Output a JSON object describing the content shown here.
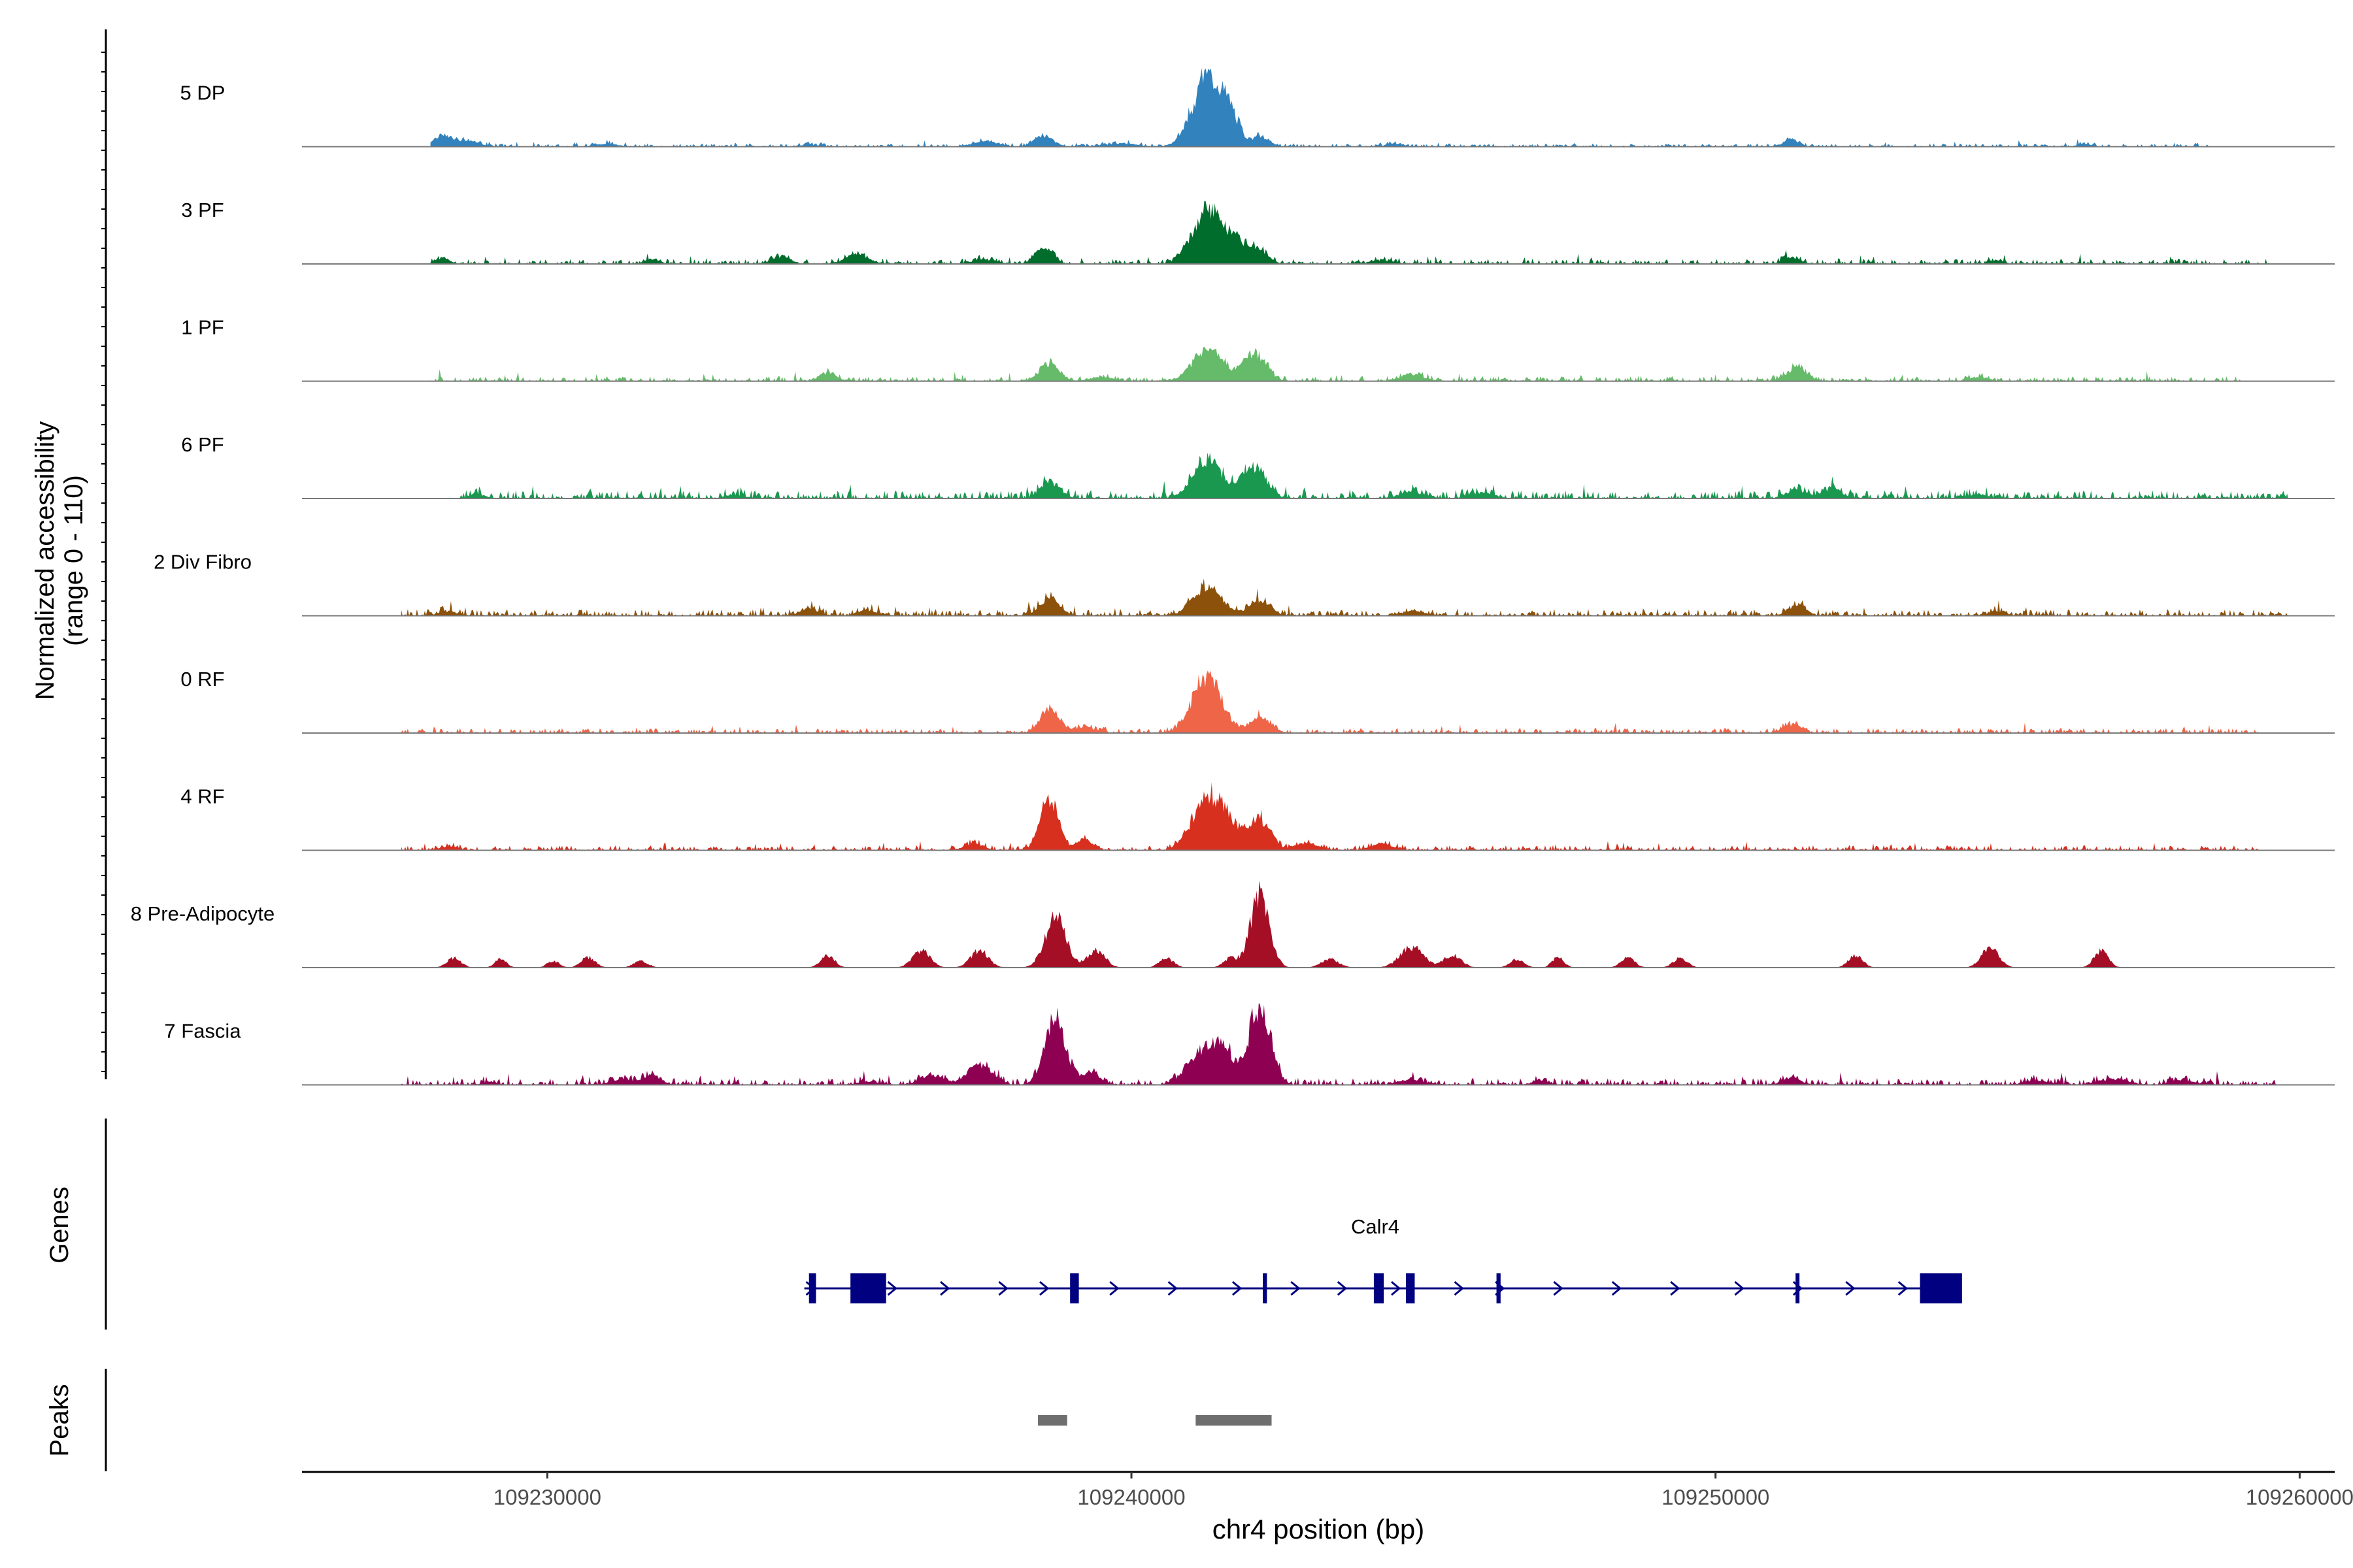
{
  "chart_data": {
    "type": "area",
    "title": "",
    "ylabel": "Normalized accessibility",
    "ylabel_sub": "(range 0 - 110)",
    "ylim": [
      0,
      110
    ],
    "xlabel": "chr4 position (bp)",
    "xlim": [
      109225800,
      109260600
    ],
    "xticks": [
      109230000,
      109240000,
      109250000,
      109260000
    ],
    "xtick_labels": [
      "109230000",
      "109240000",
      "109250000",
      "109260000"
    ],
    "genes_label": "Genes",
    "peaks_label": "Peaks",
    "tracks": [
      {
        "name": "5 DP",
        "color": "#3182BD",
        "peaks": [
          [
            109228200,
            15,
            150
          ],
          [
            109228600,
            8,
            220
          ],
          [
            109231000,
            4,
            200
          ],
          [
            109234500,
            3,
            150
          ],
          [
            109237500,
            8,
            200
          ],
          [
            109238500,
            16,
            150
          ],
          [
            109239800,
            4,
            300
          ],
          [
            109241300,
            100,
            250
          ],
          [
            109241700,
            35,
            150
          ],
          [
            109242200,
            13,
            150
          ],
          [
            109244500,
            4,
            150
          ],
          [
            109251300,
            11,
            120
          ],
          [
            109256300,
            4,
            100
          ]
        ],
        "noise": 2,
        "span": [
          109228000,
          109258500
        ]
      },
      {
        "name": "3 PF",
        "color": "#006D2C",
        "peaks": [
          [
            109228200,
            8,
            120
          ],
          [
            109231800,
            7,
            120
          ],
          [
            109234000,
            10,
            150
          ],
          [
            109235300,
            15,
            180
          ],
          [
            109237500,
            6,
            200
          ],
          [
            109238500,
            22,
            150
          ],
          [
            109241300,
            78,
            250
          ],
          [
            109241800,
            30,
            200
          ],
          [
            109242200,
            18,
            150
          ],
          [
            109244300,
            5,
            200
          ],
          [
            109251300,
            9,
            150
          ],
          [
            109254800,
            5,
            120
          ]
        ],
        "noise": 3,
        "span": [
          109228000,
          109259500
        ]
      },
      {
        "name": "1 PF",
        "color": "#66BB6A",
        "peaks": [
          [
            109234800,
            12,
            150
          ],
          [
            109238600,
            25,
            160
          ],
          [
            109239500,
            6,
            200
          ],
          [
            109241300,
            45,
            250
          ],
          [
            109242100,
            40,
            200
          ],
          [
            109244800,
            10,
            200
          ],
          [
            109251400,
            20,
            160
          ],
          [
            109254500,
            6,
            150
          ]
        ],
        "noise": 3,
        "span": [
          109228000,
          109259000
        ]
      },
      {
        "name": "6 PF",
        "color": "#1A9850",
        "peaks": [
          [
            109228800,
            6,
            120
          ],
          [
            109233200,
            5,
            150
          ],
          [
            109238600,
            25,
            160
          ],
          [
            109241300,
            55,
            250
          ],
          [
            109242100,
            45,
            200
          ],
          [
            109244800,
            10,
            200
          ],
          [
            109246000,
            8,
            200
          ],
          [
            109251400,
            12,
            160
          ],
          [
            109252000,
            15,
            150
          ],
          [
            109254500,
            6,
            150
          ]
        ],
        "noise": 5,
        "span": [
          109228500,
          109259800
        ]
      },
      {
        "name": "2 Div Fibro",
        "color": "#8C510A",
        "peaks": [
          [
            109228300,
            6,
            150
          ],
          [
            109234500,
            10,
            150
          ],
          [
            109235500,
            8,
            150
          ],
          [
            109238600,
            24,
            160
          ],
          [
            109241300,
            40,
            250
          ],
          [
            109242200,
            22,
            180
          ],
          [
            109244800,
            6,
            200
          ],
          [
            109251400,
            15,
            150
          ],
          [
            109254800,
            5,
            150
          ]
        ],
        "noise": 4,
        "span": [
          109227500,
          109259800
        ]
      },
      {
        "name": "0 RF",
        "color": "#EF6548",
        "peaks": [
          [
            109238600,
            35,
            160
          ],
          [
            109239200,
            8,
            200
          ],
          [
            109241300,
            80,
            250
          ],
          [
            109242200,
            22,
            180
          ],
          [
            109251300,
            12,
            150
          ]
        ],
        "noise": 3,
        "span": [
          109227500,
          109259300
        ]
      },
      {
        "name": "4 RF",
        "color": "#D7301F",
        "peaks": [
          [
            109228300,
            5,
            150
          ],
          [
            109237300,
            10,
            150
          ],
          [
            109238600,
            75,
            150
          ],
          [
            109239200,
            15,
            150
          ],
          [
            109241300,
            72,
            250
          ],
          [
            109241700,
            30,
            200
          ],
          [
            109242200,
            45,
            180
          ],
          [
            109243000,
            10,
            200
          ],
          [
            109244300,
            8,
            200
          ]
        ],
        "noise": 3,
        "span": [
          109227500,
          109259300
        ]
      },
      {
        "name": "8 Pre-Adipocyte",
        "color": "#A50F26",
        "peaks": [
          [
            109228400,
            14,
            120
          ],
          [
            109229200,
            12,
            100
          ],
          [
            109230100,
            10,
            100
          ],
          [
            109230700,
            15,
            120
          ],
          [
            109231600,
            10,
            120
          ],
          [
            109234800,
            18,
            120
          ],
          [
            109236400,
            25,
            150
          ],
          [
            109237400,
            25,
            150
          ],
          [
            109238700,
            72,
            180
          ],
          [
            109239400,
            25,
            150
          ],
          [
            109240600,
            14,
            120
          ],
          [
            109241700,
            14,
            120
          ],
          [
            109242200,
            110,
            160
          ],
          [
            109243400,
            12,
            150
          ],
          [
            109244800,
            30,
            200
          ],
          [
            109245500,
            18,
            150
          ],
          [
            109246600,
            12,
            120
          ],
          [
            109247300,
            15,
            100
          ],
          [
            109248500,
            14,
            120
          ],
          [
            109249400,
            14,
            120
          ],
          [
            109252400,
            18,
            120
          ],
          [
            109254700,
            28,
            150
          ],
          [
            109256600,
            25,
            120
          ]
        ],
        "noise": 0,
        "span": [
          109228000,
          109257000
        ]
      },
      {
        "name": "7 Fascia",
        "color": "#8E0152",
        "peaks": [
          [
            109229000,
            4,
            120
          ],
          [
            109231300,
            8,
            200
          ],
          [
            109231800,
            12,
            150
          ],
          [
            109235500,
            4,
            200
          ],
          [
            109236600,
            15,
            180
          ],
          [
            109237400,
            30,
            200
          ],
          [
            109238700,
            95,
            180
          ],
          [
            109239300,
            18,
            150
          ],
          [
            109241200,
            45,
            250
          ],
          [
            109241600,
            40,
            200
          ],
          [
            109242200,
            115,
            180
          ],
          [
            109244800,
            8,
            200
          ],
          [
            109247000,
            5,
            150
          ],
          [
            109251300,
            10,
            150
          ],
          [
            109255500,
            6,
            200
          ],
          [
            109256800,
            8,
            250
          ],
          [
            109258000,
            6,
            200
          ]
        ],
        "noise": 4,
        "span": [
          109227500,
          109259600
        ]
      }
    ],
    "gene": {
      "name": "Calr4",
      "color": "#000080",
      "start": 109234400,
      "end": 109254200,
      "exons": [
        [
          109234480,
          109234600
        ],
        [
          109235190,
          109235800
        ],
        [
          109238950,
          109239100
        ],
        [
          109242250,
          109242320
        ],
        [
          109244150,
          109244320
        ],
        [
          109244700,
          109244850
        ],
        [
          109246250,
          109246320
        ],
        [
          109251370,
          109251430
        ],
        [
          109253500,
          109254220
        ]
      ],
      "arrows": [
        109234500,
        109235900,
        109236800,
        109237800,
        109238500,
        109239700,
        109240700,
        109241800,
        109242800,
        109243600,
        109244520,
        109245600,
        109246300,
        109247300,
        109248300,
        109249300,
        109250400,
        109251400,
        109252300,
        109253200
      ]
    },
    "peaks": [
      [
        109238400,
        109238900
      ],
      [
        109241100,
        109242400
      ]
    ]
  }
}
